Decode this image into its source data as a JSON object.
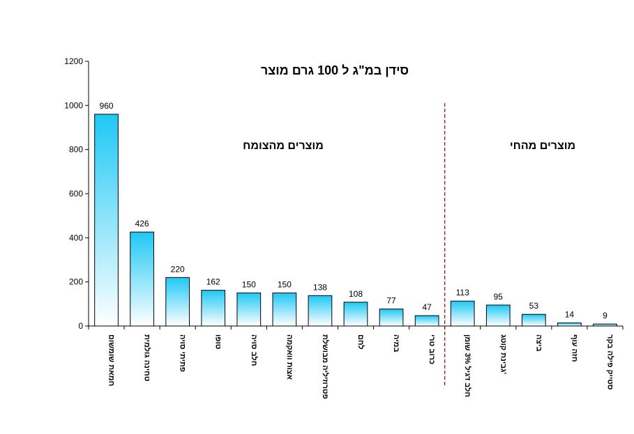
{
  "chart_data": {
    "type": "bar",
    "title": "סידן במ\"ג ל 100 גרם מוצר",
    "categories": [
      "חמאת שומשום",
      "טחינה גולמית",
      "פתיתי סויה",
      "טופו",
      "חלב סויה",
      "אצות וואקמה",
      "פטרוזיליה מבושלת",
      "לחם",
      "במיה",
      "כרוב טרי",
      "חלב דגיל 3% שומן",
      "גבינת קוטג'",
      "ביצה",
      "חזה עוף",
      "סטייק פילה בקר"
    ],
    "values": [
      960,
      426,
      220,
      162,
      150,
      150,
      138,
      108,
      77,
      47,
      113,
      95,
      53,
      14,
      9
    ],
    "data_labels": [
      "960",
      "426",
      "220",
      "162",
      "150",
      "150",
      "138",
      "108",
      "77",
      "47",
      "113",
      "95",
      "53",
      "14",
      "9"
    ],
    "ylim": [
      0,
      1200
    ],
    "yticks": [
      0,
      200,
      400,
      600,
      800,
      1000,
      1200
    ],
    "ytick_labels": [
      "0",
      "200",
      "400",
      "600",
      "800",
      "1000",
      "1200"
    ],
    "xlabel": "",
    "ylabel": "",
    "grid": false,
    "legend": "none",
    "groups": [
      {
        "label": "מוצרים מהצומח",
        "start": 0,
        "end": 9
      },
      {
        "label": "מוצרים מהחי",
        "start": 10,
        "end": 14
      }
    ],
    "divider_after_index": 9,
    "colors": {
      "bar_top": "#1ec8f5",
      "bar_bottom": "#ffffff",
      "bar_stroke": "#000000",
      "divider": "#8b1a1a"
    }
  }
}
